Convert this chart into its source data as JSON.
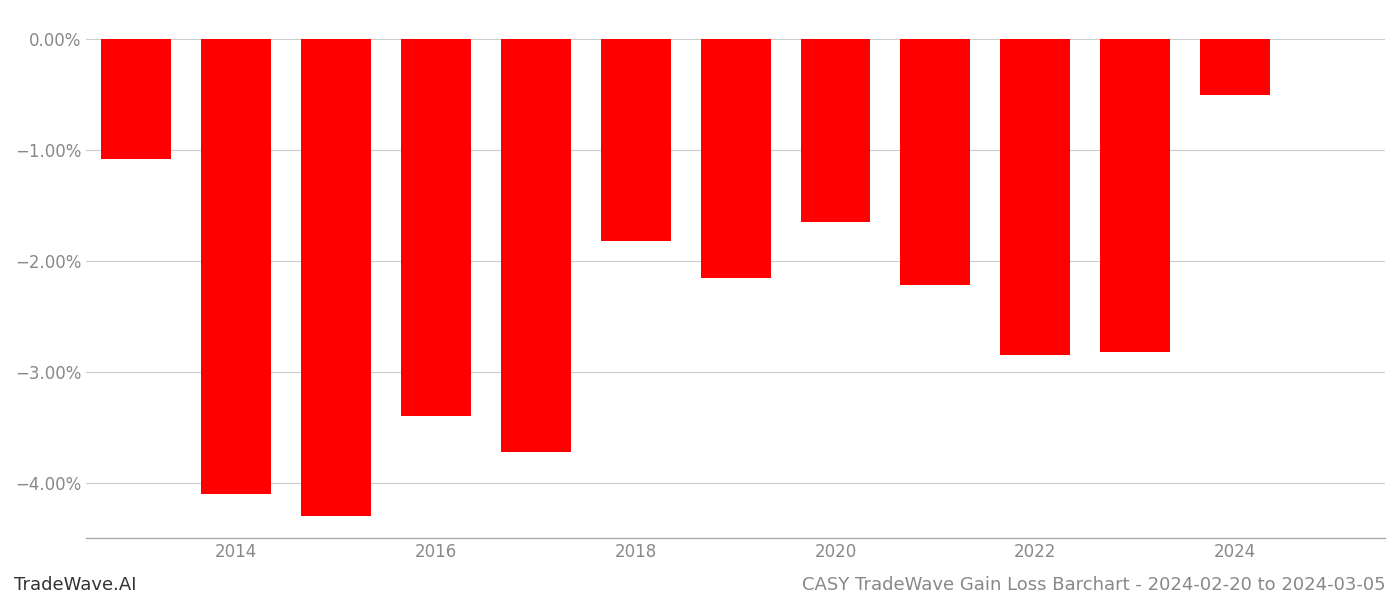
{
  "years": [
    2013,
    2014,
    2015,
    2016,
    2017,
    2018,
    2019,
    2020,
    2021,
    2022,
    2023,
    2024
  ],
  "values": [
    -1.08,
    -4.1,
    -4.3,
    -3.4,
    -3.72,
    -1.82,
    -2.15,
    -1.65,
    -2.22,
    -2.85,
    -2.82,
    -0.5
  ],
  "bar_color": "#ff0000",
  "ylim": [
    -4.5,
    0.22
  ],
  "yticks": [
    0.0,
    -1.0,
    -2.0,
    -3.0,
    -4.0
  ],
  "xticks": [
    2014,
    2016,
    2018,
    2020,
    2022,
    2024
  ],
  "xlim": [
    2012.5,
    2025.5
  ],
  "background_color": "#ffffff",
  "grid_color": "#cccccc",
  "bar_width": 0.7,
  "tick_label_color": "#888888",
  "footer_left": "TradeWave.AI",
  "footer_right": "CASY TradeWave Gain Loss Barchart - 2024-02-20 to 2024-03-05",
  "footer_fontsize": 13,
  "axis_fontsize": 12
}
